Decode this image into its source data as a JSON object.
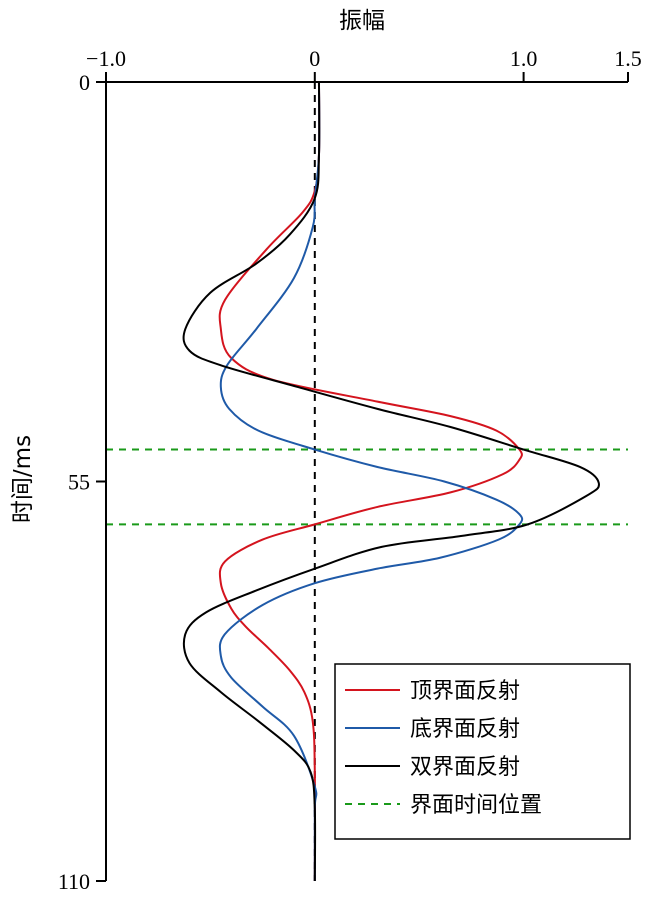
{
  "chart_data": {
    "type": "line",
    "xlabel": "振幅",
    "ylabel": "时间/ms",
    "xlim": [
      -1.0,
      1.5
    ],
    "ylim": [
      0,
      110
    ],
    "y_inverted": true,
    "x_axis_position": "top",
    "x_ticks": [
      -1.0,
      0,
      1.0,
      1.5
    ],
    "x_tick_labels": [
      "−1.0",
      "0",
      "1.0",
      "1.5"
    ],
    "y_ticks": [
      0,
      55,
      110
    ],
    "y_tick_labels": [
      "0",
      "55",
      "110"
    ],
    "grid": false,
    "legend_position": "bottom-right",
    "zero_line": {
      "x": 0,
      "style": "dashed",
      "color": "#000000"
    },
    "interface_times": {
      "name": "界面时间位置",
      "values": [
        50.6,
        60.9
      ],
      "color": "#1a9a1a",
      "style": "dashed"
    },
    "series": [
      {
        "name": "顶界面反射",
        "color": "#d4141e",
        "x": [
          0.02,
          0.02,
          0.0,
          -0.06,
          -0.23,
          -0.43,
          -0.45,
          -0.4,
          -0.2,
          0.3,
          0.65,
          0.87,
          0.98,
          0.98,
          0.9,
          0.65,
          0.3,
          0.0,
          -0.25,
          -0.43,
          -0.45,
          -0.4,
          -0.33,
          -0.22,
          -0.12,
          -0.05,
          -0.01,
          0.0,
          0.0
        ],
        "y": [
          0,
          10,
          15,
          18,
          23,
          30,
          34,
          38,
          41,
          44,
          46,
          48,
          50.6,
          52,
          54,
          56.5,
          58.5,
          60.9,
          63,
          66,
          69,
          72.5,
          75,
          78,
          81,
          84,
          88,
          95,
          110
        ]
      },
      {
        "name": "底界面反射",
        "color": "#1f5aa8",
        "x": [
          0.02,
          0.02,
          0.0,
          -0.01,
          -0.1,
          -0.28,
          -0.42,
          -0.45,
          -0.41,
          -0.27,
          0.0,
          0.3,
          0.62,
          0.87,
          0.98,
          0.98,
          0.88,
          0.6,
          0.3,
          0.0,
          -0.25,
          -0.43,
          -0.45,
          -0.4,
          -0.25,
          -0.1,
          0.0,
          0.0,
          0.0
        ],
        "y": [
          0,
          10,
          16,
          20,
          27,
          34,
          39,
          42,
          45,
          48,
          50.6,
          53,
          55,
          57.5,
          59.5,
          60.9,
          63,
          65.5,
          67,
          69,
          72,
          76,
          79,
          82,
          86,
          90,
          97,
          100,
          110
        ]
      },
      {
        "name": "双界面反射",
        "color": "#000000",
        "x": [
          0.02,
          0.02,
          0.0,
          -0.12,
          -0.28,
          -0.5,
          -0.62,
          -0.6,
          -0.45,
          -0.08,
          0.3,
          0.65,
          1.0,
          1.27,
          1.36,
          1.3,
          1.02,
          0.7,
          0.32,
          0.0,
          -0.28,
          -0.52,
          -0.62,
          -0.6,
          -0.45,
          -0.27,
          -0.1,
          -0.02,
          0.0,
          0.0
        ],
        "y": [
          0,
          10,
          16,
          21,
          25,
          29,
          34,
          37,
          39,
          42,
          45,
          47.5,
          50.6,
          53,
          55.2,
          57,
          60.9,
          62.5,
          64,
          67,
          70,
          73,
          76,
          80,
          84,
          88,
          92,
          95,
          100,
          110
        ]
      }
    ]
  }
}
